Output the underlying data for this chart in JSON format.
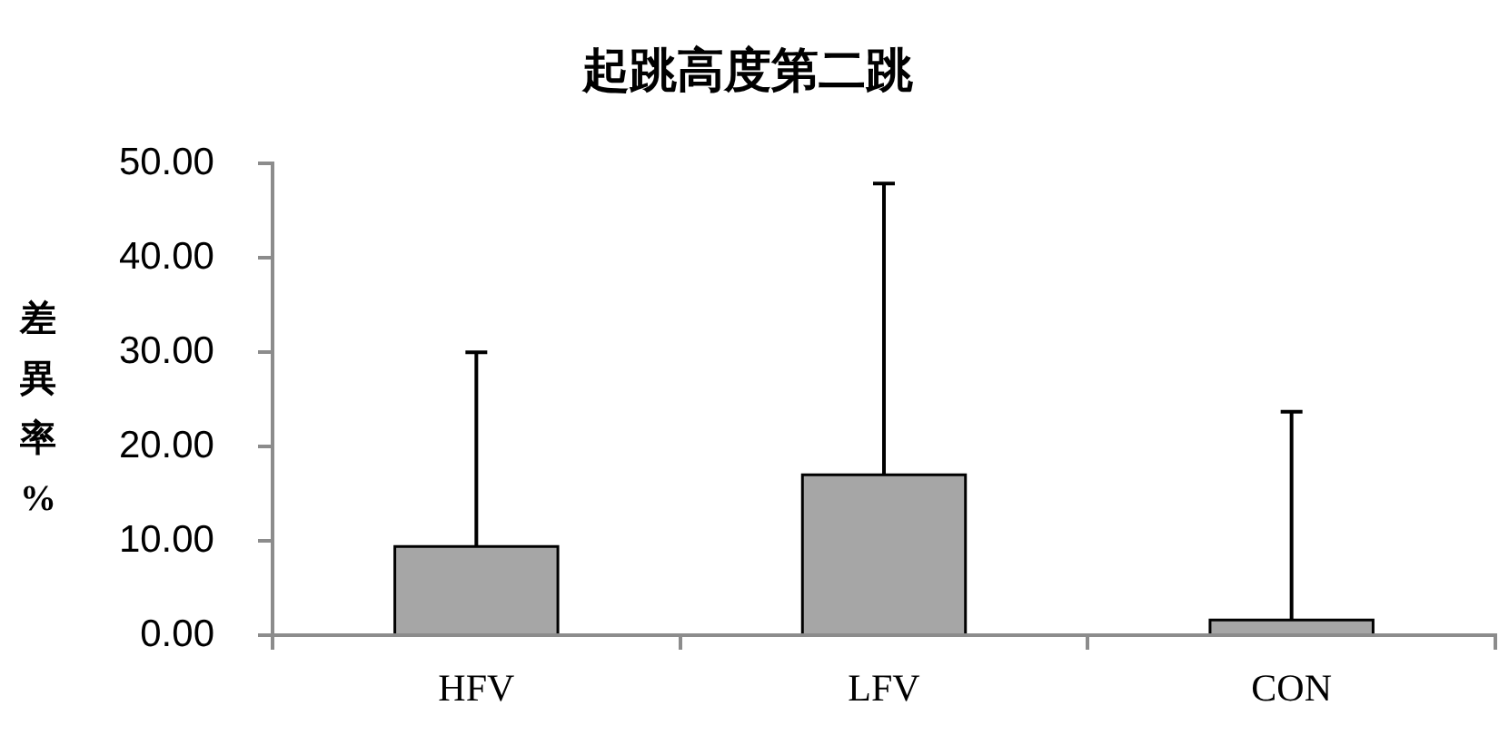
{
  "chart_data": {
    "type": "bar",
    "title": "起跳高度第二跳",
    "ylabel": "差異率%",
    "categories": [
      "HFV",
      "LFV",
      "CON"
    ],
    "values": [
      9.4,
      17.0,
      1.6
    ],
    "color": "#a6a6a6",
    "errors": [
      [
        9.4,
        30.0
      ],
      [
        17.0,
        47.9
      ],
      [
        1.6,
        23.7
      ]
    ],
    "ylim": [
      0,
      50
    ],
    "yticks": [
      {
        "value": 0,
        "label": "0.00"
      },
      {
        "value": 10,
        "label": "10.00"
      },
      {
        "value": 20,
        "label": "20.00"
      },
      {
        "value": 30,
        "label": "30.00"
      },
      {
        "value": 40,
        "label": "40.00"
      },
      {
        "value": 50,
        "label": "50.00"
      }
    ]
  }
}
